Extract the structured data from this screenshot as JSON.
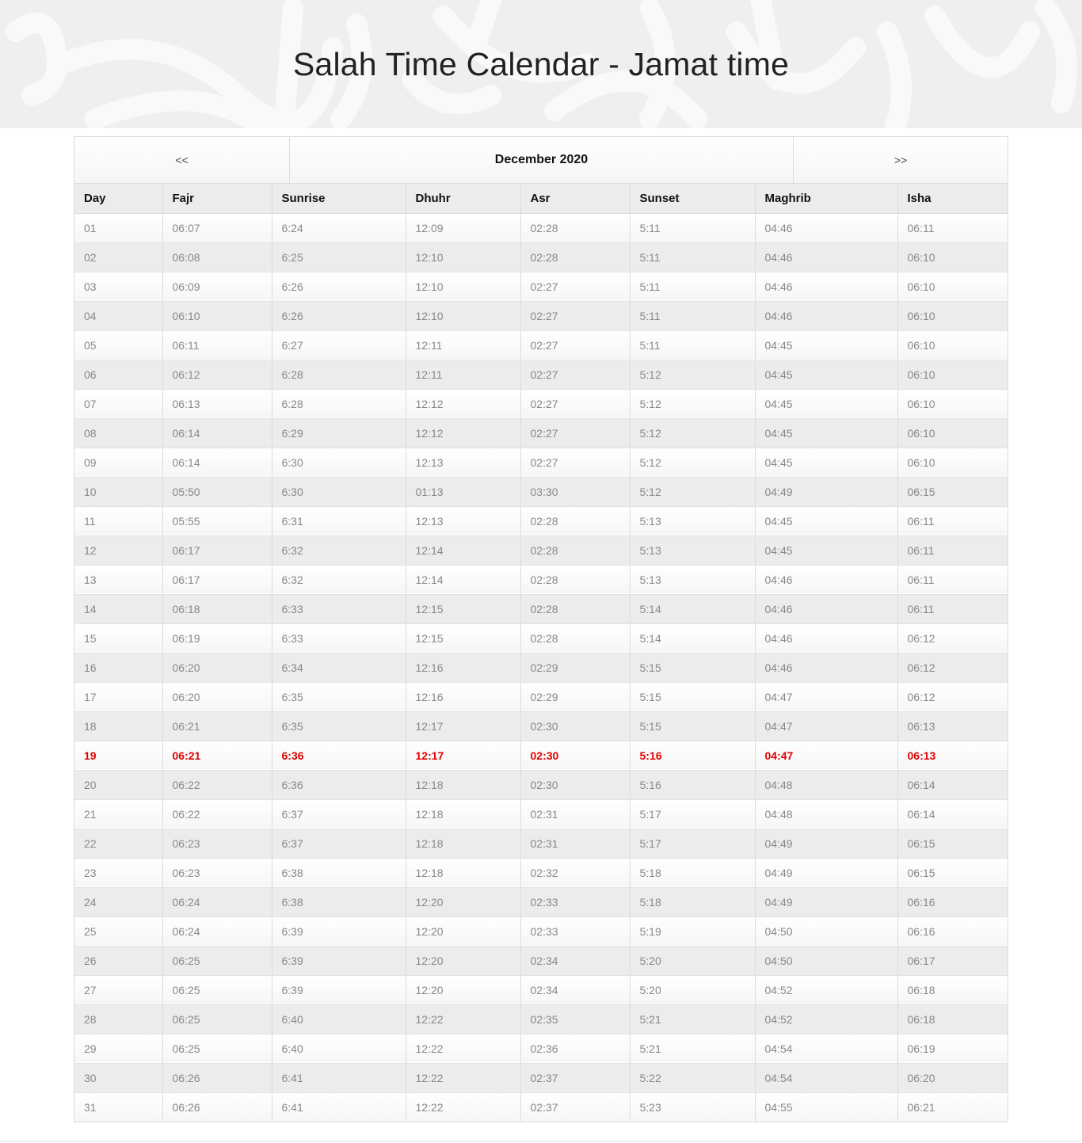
{
  "page": {
    "title": "Salah Time Calendar - Jamat time"
  },
  "nav": {
    "prev_label": "<<",
    "month_label": "December 2020",
    "next_label": ">>"
  },
  "colors": {
    "today": "#e00000",
    "banner": "#efefef"
  },
  "columns": [
    "Day",
    "Fajr",
    "Sunrise",
    "Dhuhr",
    "Asr",
    "Sunset",
    "Maghrib",
    "Isha"
  ],
  "today_day": "19",
  "rows": [
    [
      "01",
      "06:07",
      "6:24",
      "12:09",
      "02:28",
      "5:11",
      "04:46",
      "06:11"
    ],
    [
      "02",
      "06:08",
      "6:25",
      "12:10",
      "02:28",
      "5:11",
      "04:46",
      "06:10"
    ],
    [
      "03",
      "06:09",
      "6:26",
      "12:10",
      "02:27",
      "5:11",
      "04:46",
      "06:10"
    ],
    [
      "04",
      "06:10",
      "6:26",
      "12:10",
      "02:27",
      "5:11",
      "04:46",
      "06:10"
    ],
    [
      "05",
      "06:11",
      "6:27",
      "12:11",
      "02:27",
      "5:11",
      "04:45",
      "06:10"
    ],
    [
      "06",
      "06:12",
      "6:28",
      "12:11",
      "02:27",
      "5:12",
      "04:45",
      "06:10"
    ],
    [
      "07",
      "06:13",
      "6:28",
      "12:12",
      "02:27",
      "5:12",
      "04:45",
      "06:10"
    ],
    [
      "08",
      "06:14",
      "6:29",
      "12:12",
      "02:27",
      "5:12",
      "04:45",
      "06:10"
    ],
    [
      "09",
      "06:14",
      "6:30",
      "12:13",
      "02:27",
      "5:12",
      "04:45",
      "06:10"
    ],
    [
      "10",
      "05:50",
      "6:30",
      "01:13",
      "03:30",
      "5:12",
      "04:49",
      "06:15"
    ],
    [
      "11",
      "05:55",
      "6:31",
      "12:13",
      "02:28",
      "5:13",
      "04:45",
      "06:11"
    ],
    [
      "12",
      "06:17",
      "6:32",
      "12:14",
      "02:28",
      "5:13",
      "04:45",
      "06:11"
    ],
    [
      "13",
      "06:17",
      "6:32",
      "12:14",
      "02:28",
      "5:13",
      "04:46",
      "06:11"
    ],
    [
      "14",
      "06:18",
      "6:33",
      "12:15",
      "02:28",
      "5:14",
      "04:46",
      "06:11"
    ],
    [
      "15",
      "06:19",
      "6:33",
      "12:15",
      "02:28",
      "5:14",
      "04:46",
      "06:12"
    ],
    [
      "16",
      "06:20",
      "6:34",
      "12:16",
      "02:29",
      "5:15",
      "04:46",
      "06:12"
    ],
    [
      "17",
      "06:20",
      "6:35",
      "12:16",
      "02:29",
      "5:15",
      "04:47",
      "06:12"
    ],
    [
      "18",
      "06:21",
      "6:35",
      "12:17",
      "02:30",
      "5:15",
      "04:47",
      "06:13"
    ],
    [
      "19",
      "06:21",
      "6:36",
      "12:17",
      "02:30",
      "5:16",
      "04:47",
      "06:13"
    ],
    [
      "20",
      "06:22",
      "6:36",
      "12:18",
      "02:30",
      "5:16",
      "04:48",
      "06:14"
    ],
    [
      "21",
      "06:22",
      "6:37",
      "12:18",
      "02:31",
      "5:17",
      "04:48",
      "06:14"
    ],
    [
      "22",
      "06:23",
      "6:37",
      "12:18",
      "02:31",
      "5:17",
      "04:49",
      "06:15"
    ],
    [
      "23",
      "06:23",
      "6:38",
      "12:18",
      "02:32",
      "5:18",
      "04:49",
      "06:15"
    ],
    [
      "24",
      "06:24",
      "6:38",
      "12:20",
      "02:33",
      "5:18",
      "04:49",
      "06:16"
    ],
    [
      "25",
      "06:24",
      "6:39",
      "12:20",
      "02:33",
      "5:19",
      "04:50",
      "06:16"
    ],
    [
      "26",
      "06:25",
      "6:39",
      "12:20",
      "02:34",
      "5:20",
      "04:50",
      "06:17"
    ],
    [
      "27",
      "06:25",
      "6:39",
      "12:20",
      "02:34",
      "5:20",
      "04:52",
      "06:18"
    ],
    [
      "28",
      "06:25",
      "6:40",
      "12:22",
      "02:35",
      "5:21",
      "04:52",
      "06:18"
    ],
    [
      "29",
      "06:25",
      "6:40",
      "12:22",
      "02:36",
      "5:21",
      "04:54",
      "06:19"
    ],
    [
      "30",
      "06:26",
      "6:41",
      "12:22",
      "02:37",
      "5:22",
      "04:54",
      "06:20"
    ],
    [
      "31",
      "06:26",
      "6:41",
      "12:22",
      "02:37",
      "5:23",
      "04:55",
      "06:21"
    ]
  ]
}
